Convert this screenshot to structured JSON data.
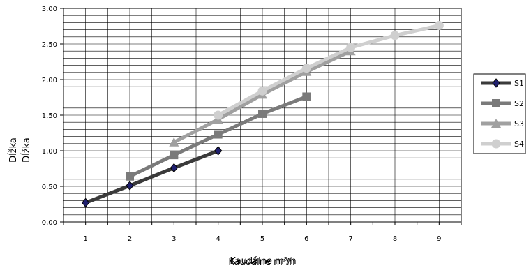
{
  "chart_data": {
    "type": "line",
    "title": "",
    "xlabel_lines": [
      "Kaudálne m³/h",
      "Kaudálne m³/h"
    ],
    "ylabel_lines": [
      "Dĺžka",
      "Dĺžka"
    ],
    "xlim": [
      0.5,
      9.5
    ],
    "ylim": [
      0,
      3
    ],
    "yticks": [
      "0,00",
      "0,50",
      "1,00",
      "1,50",
      "2,00",
      "2,50",
      "3,00"
    ],
    "xticks": [
      "1",
      "2",
      "3",
      "4",
      "5",
      "6",
      "7",
      "8",
      "9"
    ],
    "grid": true,
    "legend_position": "right",
    "series": [
      {
        "name": "S1",
        "color": "#3a3a3a",
        "marker": "diamond",
        "x": [
          1,
          2,
          3,
          4
        ],
        "values": [
          0.27,
          0.51,
          0.76,
          1.0
        ]
      },
      {
        "name": "S2",
        "color": "#7a7a7a",
        "marker": "square",
        "x": [
          2,
          3,
          4,
          5,
          6
        ],
        "values": [
          0.64,
          0.94,
          1.23,
          1.52,
          1.76
        ]
      },
      {
        "name": "S3",
        "color": "#a0a0a0",
        "marker": "triangle",
        "x": [
          3,
          4,
          5,
          6,
          7
        ],
        "values": [
          1.12,
          1.44,
          1.79,
          2.11,
          2.4
        ]
      },
      {
        "name": "S4",
        "color": "#cfcfcf",
        "marker": "circle",
        "x": [
          4,
          5,
          6,
          7,
          8,
          9
        ],
        "values": [
          1.5,
          1.84,
          2.16,
          2.45,
          2.62,
          2.76
        ]
      }
    ]
  }
}
